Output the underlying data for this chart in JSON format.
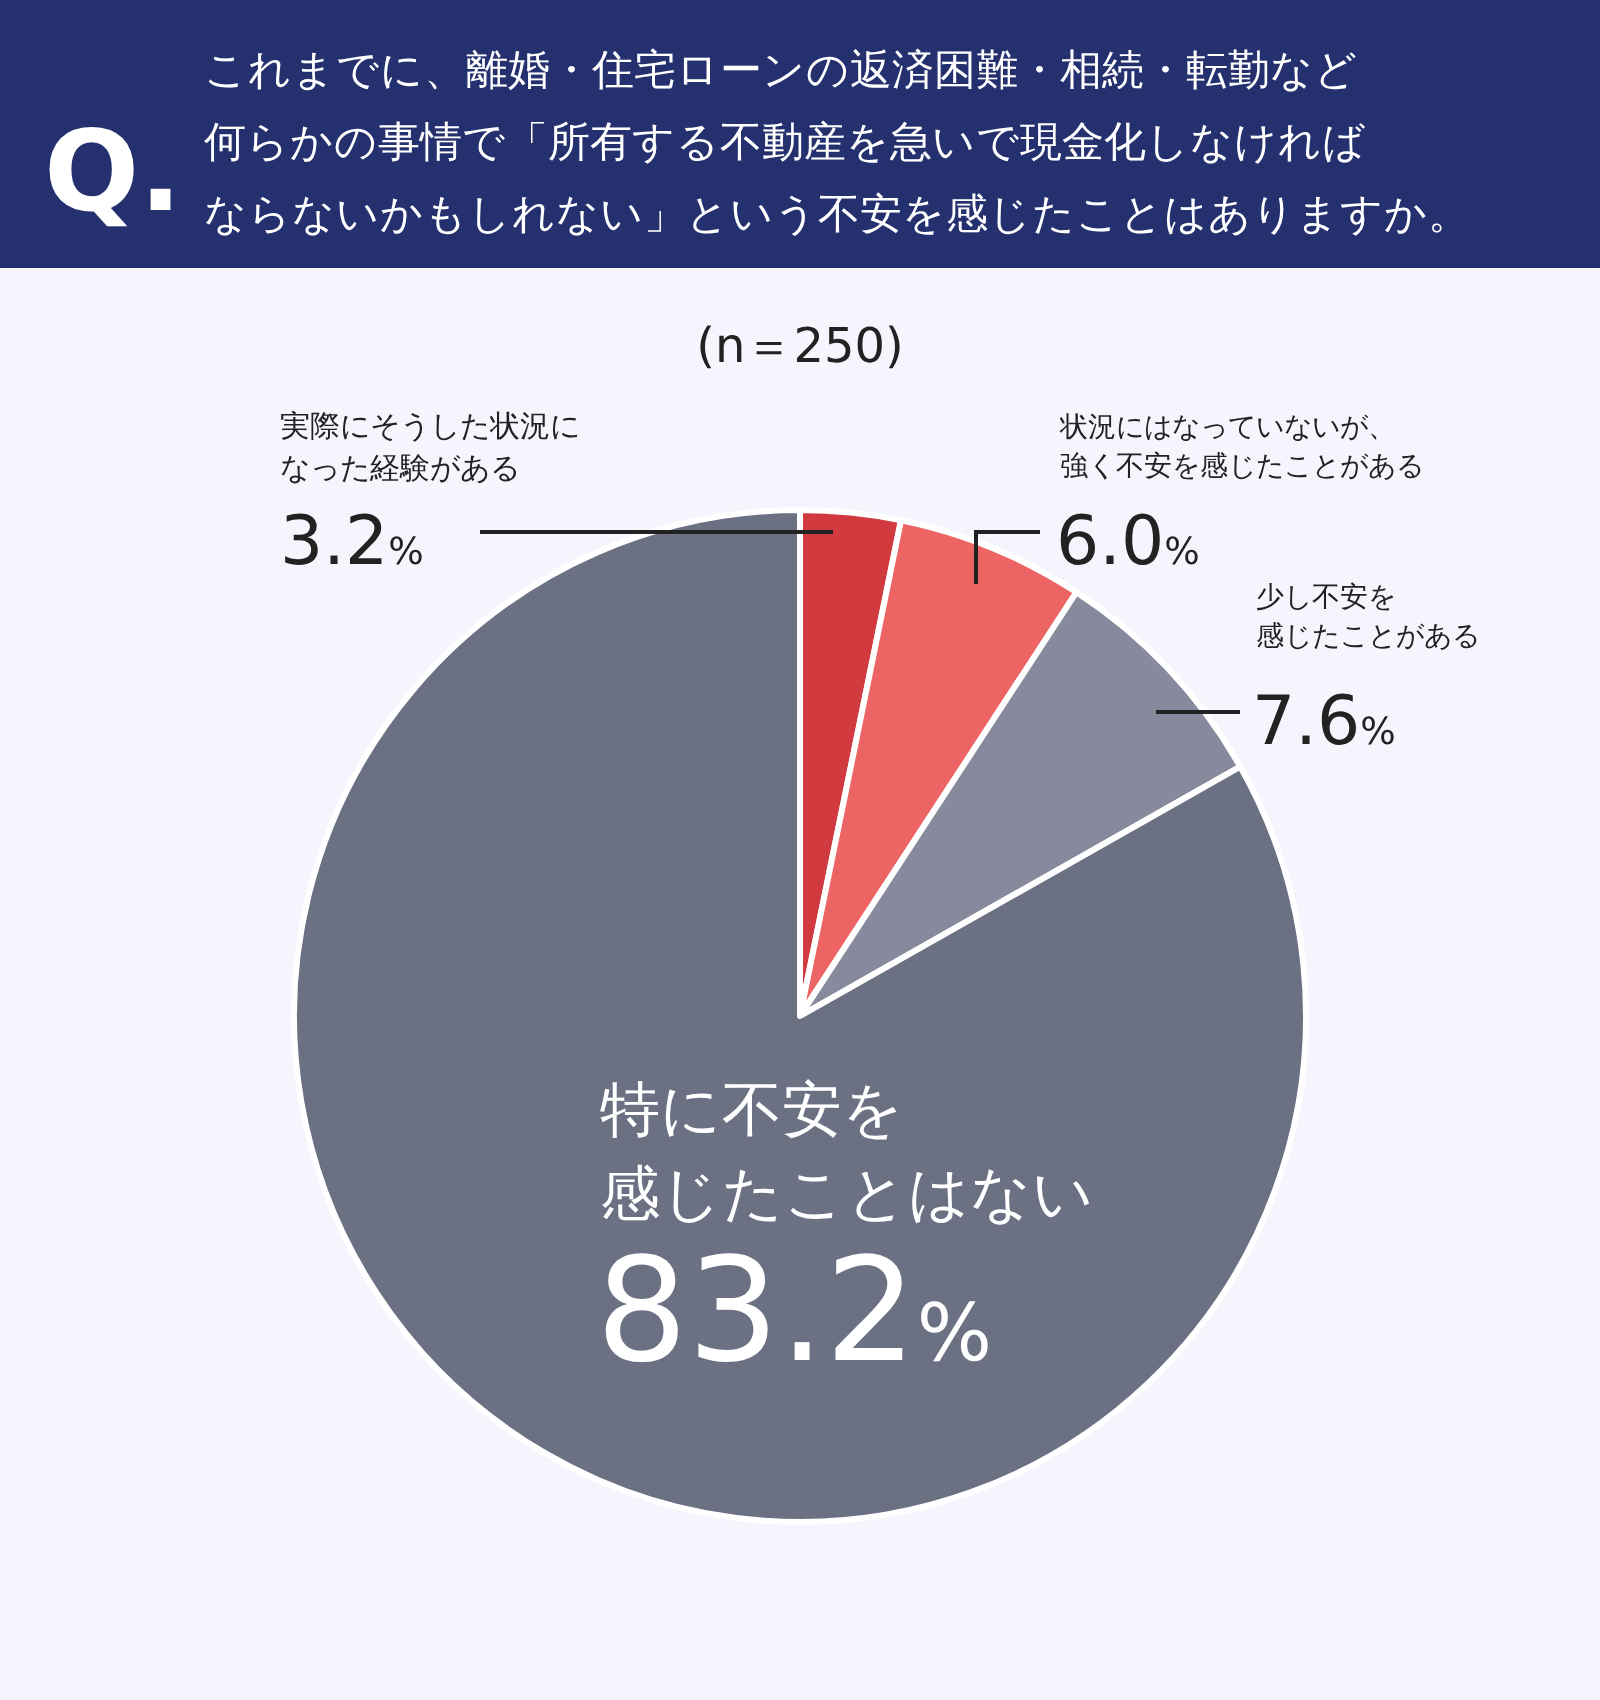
{
  "chart_data": {
    "type": "pie",
    "title": "これまでに、離婚・住宅ローンの返済困難・相続・転勤など何らかの事情で「所有する不動産を急いで現金化しなければならないかもしれない」という不安を感じたことはありますか。",
    "subtitle": "(n＝250)",
    "annotations": [
      "Q."
    ],
    "categories": [
      "実際にそうした状況になった経験がある",
      "状況にはなっていないが、強く不安を感じたことがある",
      "少し不安を感じたことがある",
      "特に不安を感じたことはない"
    ],
    "values": [
      3.2,
      6.0,
      7.6,
      83.2
    ],
    "colors": [
      "#d13a3e",
      "#ec6464",
      "#878a9c",
      "#6b7083"
    ],
    "value_labels": [
      "3.2%",
      "6.0%",
      "7.6%",
      "83.2%"
    ]
  }
}
